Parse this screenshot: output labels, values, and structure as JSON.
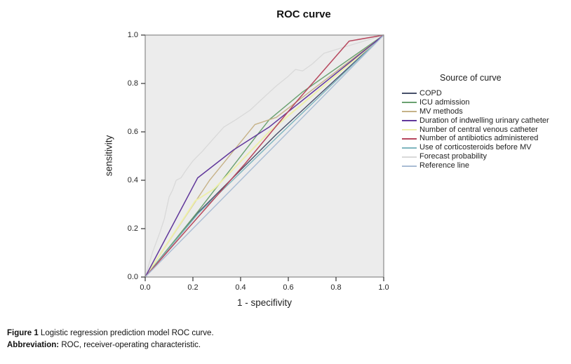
{
  "figure": {
    "title": "ROC curve",
    "caption": [
      {
        "lead": "Figure 1",
        "text": " Logistic regression prediction model ROC curve."
      },
      {
        "lead": "Abbreviation:",
        "text": " ROC, receiver-operating characteristic."
      }
    ]
  },
  "chart_data": {
    "type": "line",
    "title": "ROC curve",
    "xlabel": "1 - specifivity",
    "ylabel": "sensitivity",
    "xlim": [
      0,
      1
    ],
    "ylim": [
      0,
      1
    ],
    "x_ticks": [
      "0.0",
      "0.2",
      "0.4",
      "0.6",
      "0.8",
      "1.0"
    ],
    "y_ticks": [
      "0.0",
      "0.2",
      "0.4",
      "0.6",
      "0.8",
      "1.0"
    ],
    "grid": false,
    "plot_bg": "#ececec",
    "frame_color": "#8a8a8a",
    "tick_color": "#333333",
    "legend_title": "Source of curve",
    "legend_position": "right",
    "z_order": [
      7,
      0,
      1,
      2,
      4,
      6,
      3,
      5,
      8
    ],
    "series": [
      {
        "name": "COPD",
        "color": "#47506a",
        "width": 1.4,
        "points": [
          [
            0,
            0
          ],
          [
            0.22,
            0.265
          ],
          [
            0.55,
            0.59
          ],
          [
            1,
            1
          ]
        ]
      },
      {
        "name": "ICU admission",
        "color": "#6aa170",
        "width": 1.4,
        "points": [
          [
            0,
            0
          ],
          [
            0.22,
            0.27
          ],
          [
            0.46,
            0.575
          ],
          [
            0.52,
            0.65
          ],
          [
            0.66,
            0.765
          ],
          [
            1,
            1
          ]
        ]
      },
      {
        "name": "MV methods",
        "color": "#c6b288",
        "width": 1.4,
        "points": [
          [
            0,
            0
          ],
          [
            0.27,
            0.4
          ],
          [
            0.46,
            0.63
          ],
          [
            0.55,
            0.66
          ],
          [
            1,
            1
          ]
        ]
      },
      {
        "name": "Duration of indwelling urinary catheter",
        "color": "#61389b",
        "width": 1.5,
        "points": [
          [
            0,
            0
          ],
          [
            0.22,
            0.41
          ],
          [
            0.37,
            0.525
          ],
          [
            0.52,
            0.62
          ],
          [
            1,
            1
          ]
        ]
      },
      {
        "name": "Number of central venous catheter",
        "color": "#eeefab",
        "width": 2,
        "points": [
          [
            0,
            0
          ],
          [
            0.21,
            0.315
          ],
          [
            0.29,
            0.365
          ],
          [
            0.52,
            0.6
          ],
          [
            1,
            1
          ]
        ]
      },
      {
        "name": "Number of antibiotics administered",
        "color": "#b7485e",
        "width": 1.5,
        "points": [
          [
            0,
            0
          ],
          [
            0.42,
            0.47
          ],
          [
            0.63,
            0.72
          ],
          [
            0.855,
            0.975
          ],
          [
            1,
            1
          ]
        ]
      },
      {
        "name": "Use of corticosteroids before MV",
        "color": "#7fb6bf",
        "width": 1.4,
        "points": [
          [
            0,
            0
          ],
          [
            0.22,
            0.26
          ],
          [
            0.55,
            0.575
          ],
          [
            1,
            1
          ]
        ]
      },
      {
        "name": "Forecast probability",
        "color": "#d9d9d9",
        "width": 1.3,
        "points": [
          [
            0,
            0
          ],
          [
            0.03,
            0.1
          ],
          [
            0.06,
            0.18
          ],
          [
            0.08,
            0.24
          ],
          [
            0.1,
            0.33
          ],
          [
            0.115,
            0.36
          ],
          [
            0.13,
            0.4
          ],
          [
            0.15,
            0.41
          ],
          [
            0.17,
            0.44
          ],
          [
            0.2,
            0.48
          ],
          [
            0.24,
            0.52
          ],
          [
            0.28,
            0.565
          ],
          [
            0.33,
            0.62
          ],
          [
            0.38,
            0.65
          ],
          [
            0.44,
            0.69
          ],
          [
            0.5,
            0.745
          ],
          [
            0.55,
            0.79
          ],
          [
            0.6,
            0.83
          ],
          [
            0.63,
            0.858
          ],
          [
            0.66,
            0.852
          ],
          [
            0.7,
            0.88
          ],
          [
            0.75,
            0.925
          ],
          [
            0.8,
            0.94
          ],
          [
            0.85,
            0.955
          ],
          [
            0.9,
            0.97
          ],
          [
            1,
            1
          ]
        ]
      },
      {
        "name": "Reference line",
        "color": "#a9bcd4",
        "width": 1.4,
        "points": [
          [
            0,
            0
          ],
          [
            1,
            1
          ]
        ]
      }
    ]
  }
}
